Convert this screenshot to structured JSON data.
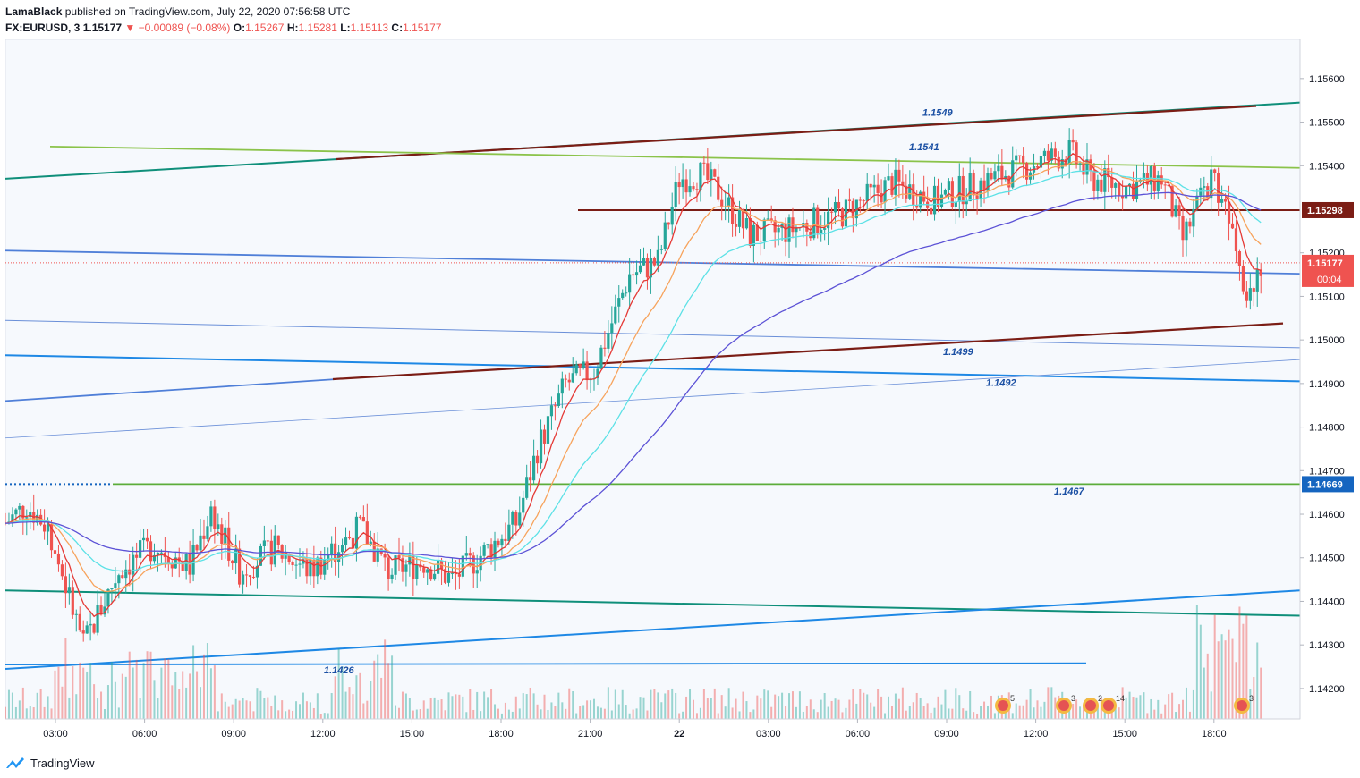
{
  "header": {
    "author": "LamaBlack",
    "published": "published on TradingView.com, July 22, 2020 07:56:58 UTC",
    "symbol": "FX:EURUSD, 3",
    "last": "1.15177",
    "change": "−0.00089 (−0.08%)",
    "o_label": "O:",
    "o": "1.15267",
    "h_label": "H:",
    "h": "1.15281",
    "l_label": "L:",
    "l": "1.15113",
    "c_label": "C:",
    "c": "1.15177"
  },
  "footer": {
    "brand": "TradingView"
  },
  "colors": {
    "up": "#26a69a",
    "down": "#ef5350",
    "ema_fast": "#e53935",
    "ema_mid": "#f7a35c",
    "ema_slow": "#5ce1e6",
    "ema_long": "#5c52d6",
    "resistance": "#7b1d15",
    "channel": "#0f8f7a",
    "blue_line": "#1e88e5",
    "green_level": "#5cad3a",
    "light_green": "#8bc34a",
    "price_tag_red": "#ef5350",
    "price_tag_blue": "#1565c0"
  },
  "chart_data": {
    "type": "candlestick",
    "title": "FX:EURUSD, 3",
    "x_tick_labels": [
      "03:00",
      "06:00",
      "09:00",
      "12:00",
      "15:00",
      "18:00",
      "21:00",
      "22",
      "03:00",
      "06:00",
      "09:00",
      "12:00",
      "15:00",
      "18:00"
    ],
    "y_tick_labels": [
      "1.15600",
      "1.15500",
      "1.15400",
      "1.15298",
      "1.15200",
      "1.15177",
      "1.15100",
      "1.15000",
      "1.14900",
      "1.14800",
      "1.14700",
      "1.14669",
      "1.14600",
      "1.14500",
      "1.14400",
      "1.14300",
      "1.14200"
    ],
    "ylim": [
      1.1413,
      1.1569
    ],
    "price_range_path": [
      [
        0,
        1.1458
      ],
      [
        6,
        1.1462
      ],
      [
        12,
        1.1457
      ],
      [
        22,
        1.143
      ],
      [
        32,
        1.1447
      ],
      [
        42,
        1.1453
      ],
      [
        52,
        1.1448
      ],
      [
        58,
        1.1461
      ],
      [
        66,
        1.1447
      ],
      [
        76,
        1.1452
      ],
      [
        86,
        1.1447
      ],
      [
        100,
        1.1457
      ],
      [
        108,
        1.1447
      ],
      [
        118,
        1.1449
      ],
      [
        126,
        1.1445
      ],
      [
        136,
        1.1452
      ],
      [
        144,
        1.1458
      ],
      [
        150,
        1.1475
      ],
      [
        158,
        1.149
      ],
      [
        166,
        1.1493
      ],
      [
        176,
        1.1515
      ],
      [
        184,
        1.1518
      ],
      [
        190,
        1.1537
      ],
      [
        196,
        1.1538
      ],
      [
        200,
        1.1535
      ],
      [
        210,
        1.1524
      ],
      [
        220,
        1.1525
      ],
      [
        236,
        1.1529
      ],
      [
        250,
        1.1536
      ],
      [
        262,
        1.1532
      ],
      [
        278,
        1.1537
      ],
      [
        292,
        1.1541
      ],
      [
        300,
        1.1543
      ],
      [
        306,
        1.1537
      ],
      [
        316,
        1.1535
      ],
      [
        326,
        1.1537
      ],
      [
        332,
        1.1523
      ],
      [
        340,
        1.1538
      ],
      [
        346,
        1.1528
      ],
      [
        350,
        1.151
      ],
      [
        354,
        1.1518
      ]
    ],
    "current_price": 1.15177,
    "countdown": "00:04",
    "horizontal_levels": [
      {
        "price": 1.15298,
        "label": "1.15298"
      },
      {
        "price": 1.14669,
        "label": "1.14669"
      }
    ],
    "annotations": [
      "1.1549",
      "1.1541",
      "1.1499",
      "1.1492",
      "1.1467",
      "1.1426"
    ],
    "event_markers": [
      {
        "date_index": 0,
        "count": "5"
      },
      {
        "date_index": 1,
        "count": "3"
      },
      {
        "date_index": 2,
        "count": "2"
      },
      {
        "date_index": 3,
        "count": "14"
      },
      {
        "date_index": 4,
        "count": "3"
      }
    ],
    "moving_averages": [
      "ema-fast",
      "ema-mid",
      "ema-slow",
      "ema-long"
    ],
    "grid": false,
    "legend": "none"
  }
}
